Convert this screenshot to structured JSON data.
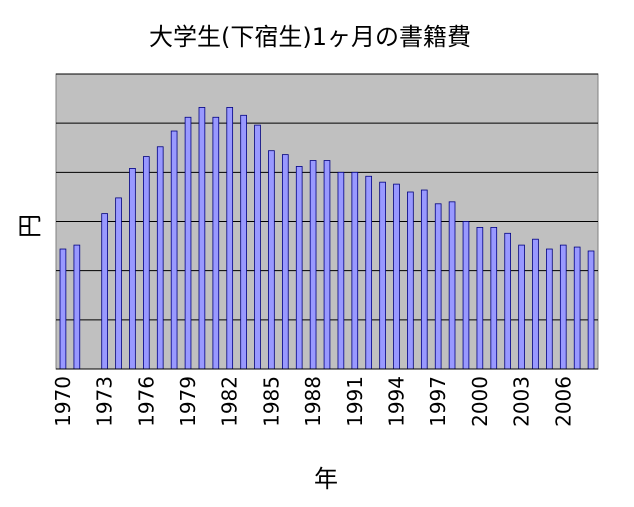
{
  "chart_data": {
    "type": "bar",
    "title": "大学生(下宿生)1ヶ月の書籍費",
    "xlabel": "年",
    "ylabel": "円",
    "x_tick_labels": [
      "1970",
      "1973",
      "1976",
      "1979",
      "1982",
      "1985",
      "1988",
      "1991",
      "1994",
      "1997",
      "2000",
      "2003",
      "2006"
    ],
    "grid": true,
    "legend": "none",
    "y_tick_labels_shown": false,
    "categories": [
      "1970",
      "1971",
      "1972",
      "1973",
      "1974",
      "1975",
      "1976",
      "1977",
      "1978",
      "1979",
      "1980",
      "1981",
      "1982",
      "1983",
      "1984",
      "1985",
      "1986",
      "1987",
      "1988",
      "1989",
      "1990",
      "1991",
      "1992",
      "1993",
      "1994",
      "1995",
      "1996",
      "1997",
      "1998",
      "1999",
      "2000",
      "2001",
      "2002",
      "2003",
      "2004",
      "2005",
      "2006",
      "2007",
      "2008"
    ],
    "values": [
      0.61,
      0.63,
      null,
      0.79,
      0.87,
      1.02,
      1.08,
      1.13,
      1.21,
      1.28,
      1.33,
      1.28,
      1.33,
      1.29,
      1.24,
      1.11,
      1.09,
      1.03,
      1.06,
      1.06,
      1.0,
      1.0,
      0.98,
      0.95,
      0.94,
      0.9,
      0.91,
      0.84,
      0.85,
      0.75,
      0.72,
      0.72,
      0.69,
      0.63,
      0.66,
      0.61,
      0.63,
      0.62,
      0.6
    ],
    "ylim": [
      0,
      1.5
    ],
    "colors": {
      "plot_bg": "#c0c0c0",
      "bar_fill": "#9999ff",
      "bar_edge": "#000080",
      "grid": "#000000"
    }
  }
}
